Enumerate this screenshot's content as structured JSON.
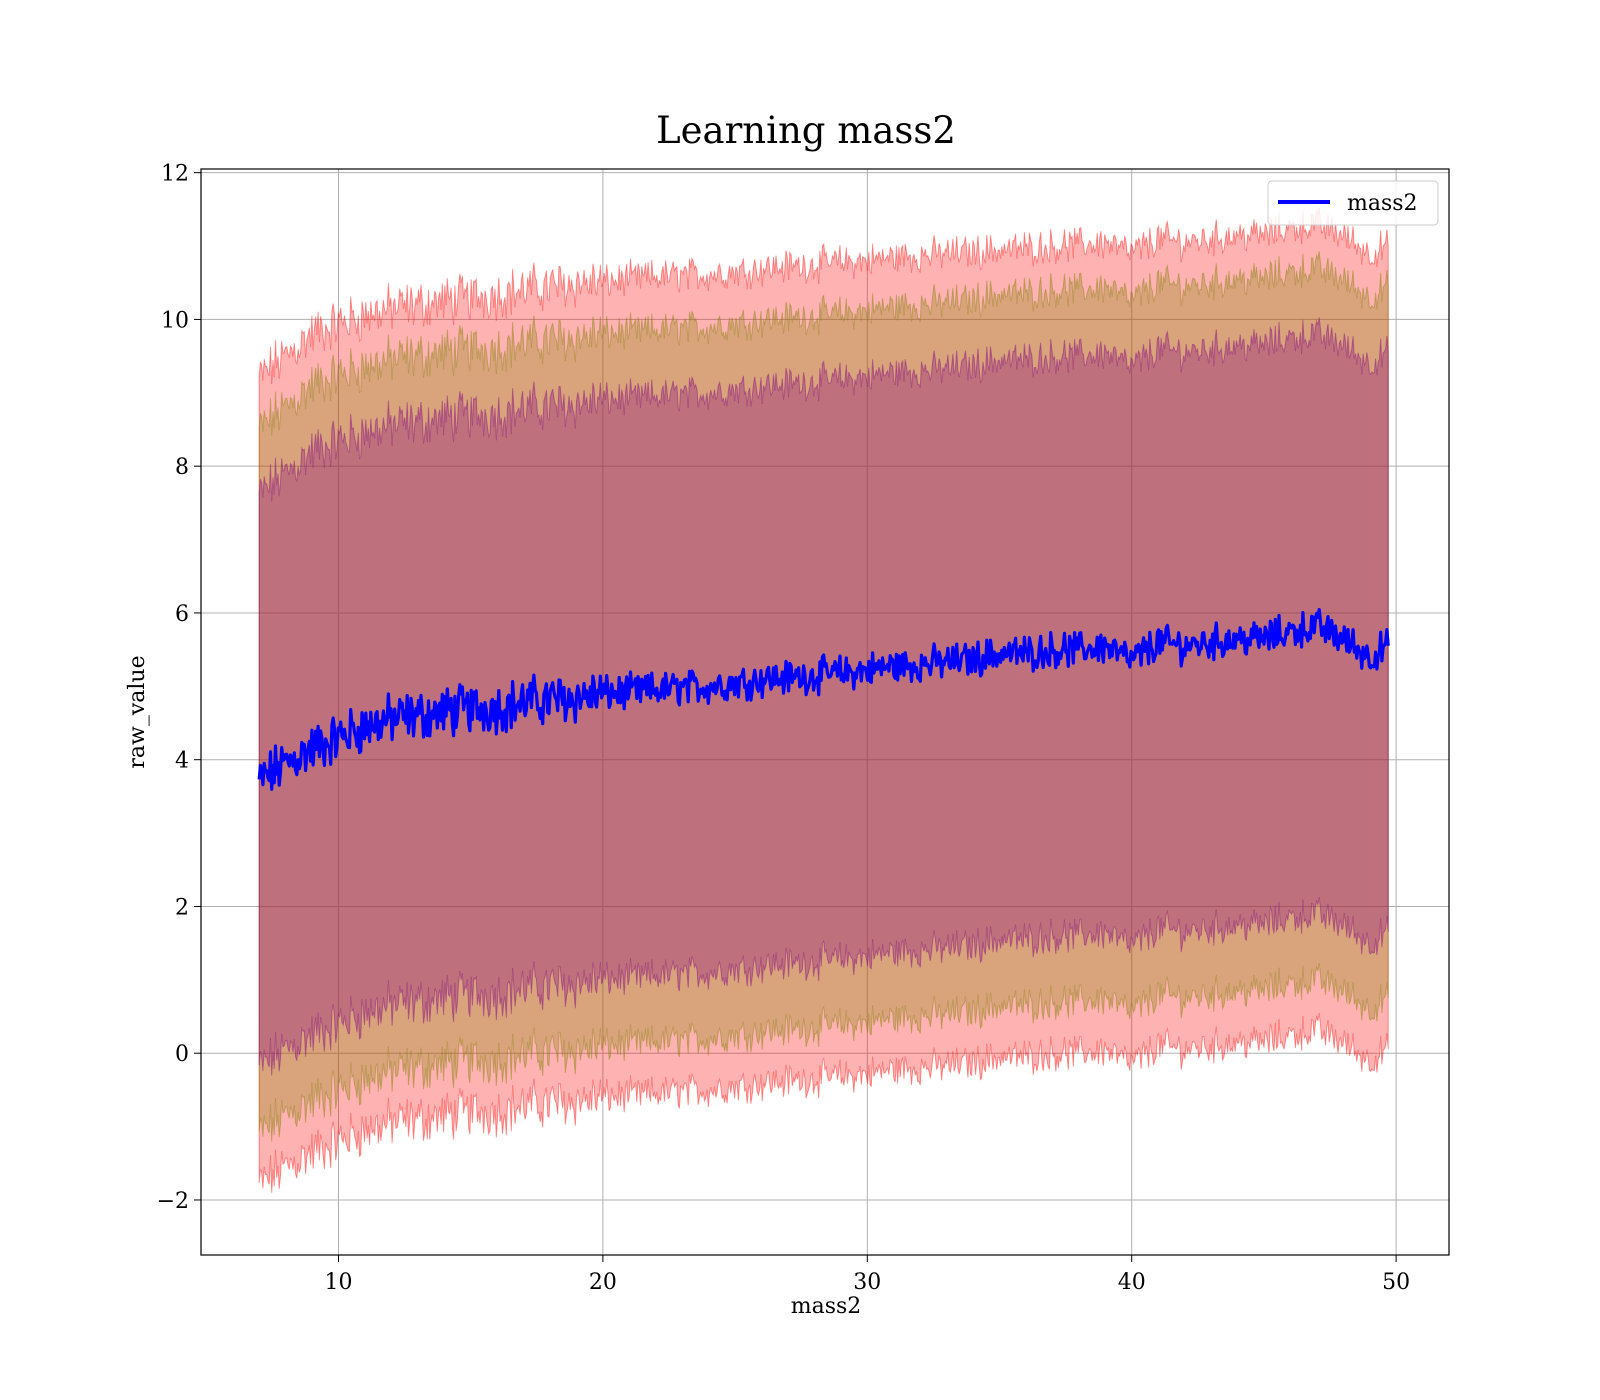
{
  "chart_data": {
    "type": "line",
    "title": "Learning mass2",
    "xlabel": "mass2",
    "ylabel": "raw_value",
    "xlim": [
      4.8,
      52.0
    ],
    "ylim": [
      -2.75,
      12.05
    ],
    "x_ticks": [
      10,
      20,
      30,
      40,
      50
    ],
    "x_tick_labels": [
      "10",
      "20",
      "30",
      "40",
      "50"
    ],
    "y_ticks": [
      -2,
      0,
      2,
      4,
      6,
      8,
      10,
      12
    ],
    "y_tick_labels": [
      "−2",
      "0",
      "2",
      "4",
      "6",
      "8",
      "10",
      "12"
    ],
    "grid": true,
    "legend": {
      "position": "top-right",
      "entries": [
        "mass2"
      ]
    },
    "series": [
      {
        "name": "mass2",
        "color": "#0000ff",
        "x": [
          7,
          8,
          9,
          10,
          11,
          12,
          13,
          14,
          15,
          16,
          17,
          18,
          19,
          20,
          21,
          22,
          23,
          24,
          25,
          26,
          27,
          28,
          29,
          30,
          31,
          32,
          33,
          34,
          35,
          36,
          37,
          38,
          39,
          40,
          41,
          42,
          43,
          44,
          45,
          46,
          47,
          48,
          49,
          49.7
        ],
        "y": [
          3.7,
          3.95,
          4.15,
          4.3,
          4.45,
          4.55,
          4.6,
          4.65,
          4.7,
          4.72,
          4.78,
          4.82,
          4.85,
          4.9,
          4.92,
          4.95,
          4.98,
          5.0,
          5.05,
          5.1,
          5.12,
          5.15,
          5.18,
          5.22,
          5.28,
          5.3,
          5.33,
          5.37,
          5.45,
          5.45,
          5.5,
          5.5,
          5.55,
          5.35,
          5.6,
          5.55,
          5.6,
          5.65,
          5.65,
          5.75,
          5.82,
          5.65,
          5.4,
          5.55
        ]
      }
    ],
    "bands": [
      {
        "color": "#ff0000",
        "opacity": 0.3,
        "x": [
          7,
          8,
          9,
          10,
          11,
          12,
          13,
          14,
          15,
          16,
          17,
          18,
          19,
          20,
          21,
          22,
          23,
          24,
          25,
          26,
          27,
          28,
          29,
          30,
          31,
          32,
          33,
          34,
          35,
          36,
          37,
          38,
          39,
          40,
          41,
          42,
          43,
          44,
          45,
          46,
          47,
          48,
          49,
          49.7
        ],
        "upper": [
          9.2,
          9.5,
          9.8,
          9.95,
          10.05,
          10.15,
          10.2,
          10.25,
          10.3,
          10.35,
          10.4,
          10.45,
          10.5,
          10.5,
          10.55,
          10.58,
          10.6,
          10.62,
          10.65,
          10.7,
          10.72,
          10.75,
          10.78,
          10.8,
          10.85,
          10.87,
          10.9,
          10.92,
          10.95,
          10.97,
          11.0,
          11.02,
          11.05,
          10.9,
          11.1,
          11.05,
          11.1,
          11.15,
          11.15,
          11.25,
          11.3,
          11.15,
          10.9,
          11.0
        ],
        "lower": [
          -1.8,
          -1.55,
          -1.35,
          -1.2,
          -1.05,
          -0.95,
          -0.9,
          -0.85,
          -0.8,
          -0.78,
          -0.72,
          -0.68,
          -0.65,
          -0.6,
          -0.58,
          -0.55,
          -0.52,
          -0.5,
          -0.45,
          -0.4,
          -0.38,
          -0.35,
          -0.32,
          -0.28,
          -0.22,
          -0.2,
          -0.17,
          -0.13,
          -0.05,
          -0.05,
          0.0,
          0.0,
          0.05,
          -0.15,
          0.1,
          0.05,
          0.1,
          0.15,
          0.15,
          0.25,
          0.32,
          0.15,
          -0.1,
          0.05
        ]
      },
      {
        "color": "#808000",
        "opacity": 0.3,
        "x": [
          7,
          8,
          9,
          10,
          11,
          12,
          13,
          14,
          15,
          16,
          17,
          18,
          19,
          20,
          21,
          22,
          23,
          24,
          25,
          26,
          27,
          28,
          29,
          30,
          31,
          32,
          33,
          34,
          35,
          36,
          37,
          38,
          39,
          40,
          41,
          42,
          43,
          44,
          45,
          46,
          47,
          48,
          49,
          49.7
        ],
        "upper": [
          8.5,
          8.8,
          9.1,
          9.25,
          9.35,
          9.45,
          9.5,
          9.55,
          9.6,
          9.62,
          9.68,
          9.72,
          9.75,
          9.8,
          9.82,
          9.85,
          9.88,
          9.9,
          9.95,
          10.0,
          10.02,
          10.05,
          10.08,
          10.12,
          10.18,
          10.2,
          10.23,
          10.27,
          10.35,
          10.35,
          10.4,
          10.4,
          10.45,
          10.25,
          10.5,
          10.45,
          10.5,
          10.55,
          10.55,
          10.65,
          10.7,
          10.55,
          10.3,
          10.45
        ],
        "lower": [
          -1.1,
          -0.85,
          -0.65,
          -0.5,
          -0.35,
          -0.25,
          -0.2,
          -0.15,
          -0.1,
          -0.08,
          -0.02,
          0.02,
          0.05,
          0.1,
          0.12,
          0.15,
          0.18,
          0.2,
          0.25,
          0.3,
          0.32,
          0.35,
          0.38,
          0.42,
          0.48,
          0.5,
          0.53,
          0.57,
          0.65,
          0.65,
          0.7,
          0.7,
          0.75,
          0.55,
          0.8,
          0.75,
          0.8,
          0.85,
          0.85,
          0.95,
          1.0,
          0.85,
          0.6,
          0.75
        ]
      },
      {
        "color": "#800080",
        "opacity": 0.3,
        "x": [
          7,
          8,
          9,
          10,
          11,
          12,
          13,
          14,
          15,
          16,
          17,
          18,
          19,
          20,
          21,
          22,
          23,
          24,
          25,
          26,
          27,
          28,
          29,
          30,
          31,
          32,
          33,
          34,
          35,
          36,
          37,
          38,
          39,
          40,
          41,
          42,
          43,
          44,
          45,
          46,
          47,
          48,
          49,
          49.7
        ],
        "upper": [
          7.6,
          7.9,
          8.2,
          8.35,
          8.45,
          8.55,
          8.6,
          8.65,
          8.7,
          8.72,
          8.78,
          8.82,
          8.85,
          8.9,
          8.92,
          8.95,
          8.98,
          9.0,
          9.05,
          9.1,
          9.12,
          9.15,
          9.18,
          9.22,
          9.28,
          9.3,
          9.33,
          9.37,
          9.45,
          9.45,
          9.5,
          9.5,
          9.55,
          9.35,
          9.6,
          9.55,
          9.6,
          9.65,
          9.65,
          9.75,
          9.8,
          9.65,
          9.4,
          9.55
        ],
        "lower": [
          -0.2,
          0.05,
          0.25,
          0.4,
          0.55,
          0.65,
          0.7,
          0.75,
          0.8,
          0.82,
          0.88,
          0.92,
          0.95,
          1.0,
          1.02,
          1.05,
          1.08,
          1.1,
          1.15,
          1.2,
          1.22,
          1.25,
          1.28,
          1.32,
          1.38,
          1.4,
          1.43,
          1.47,
          1.55,
          1.55,
          1.6,
          1.6,
          1.65,
          1.45,
          1.7,
          1.65,
          1.7,
          1.75,
          1.75,
          1.85,
          1.9,
          1.75,
          1.5,
          1.65
        ]
      }
    ]
  }
}
